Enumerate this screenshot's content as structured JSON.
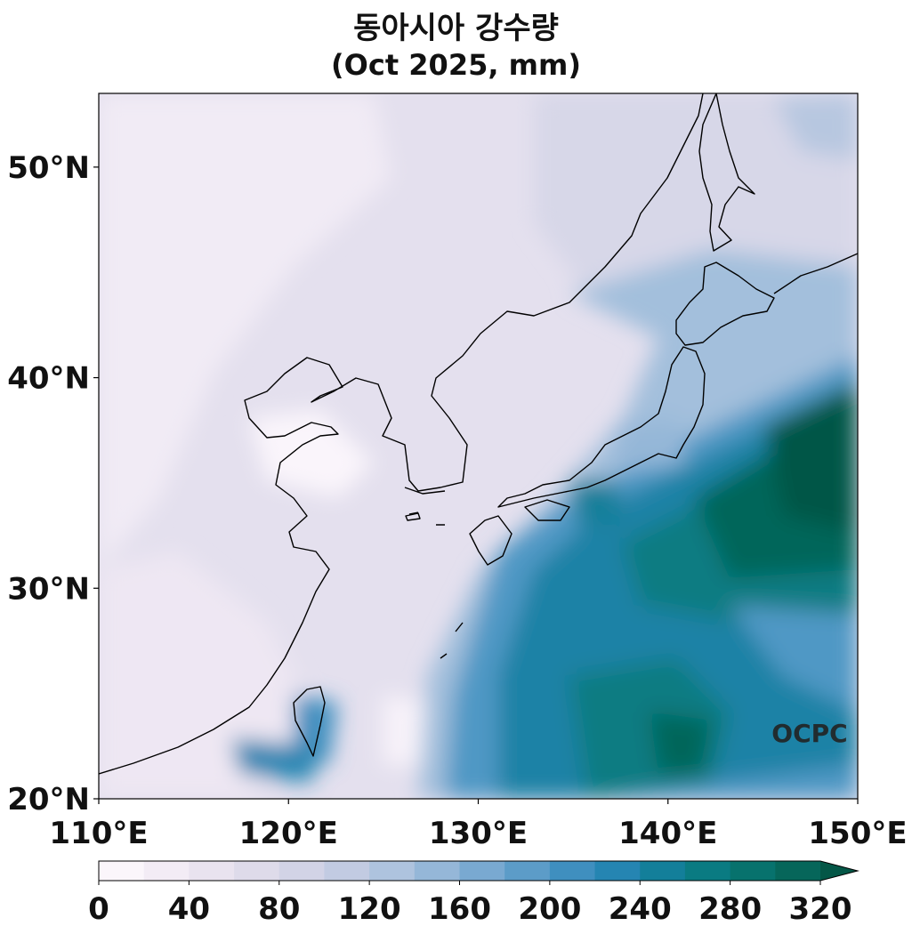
{
  "title": "동아시아 강수량",
  "subtitle": "(Oct 2025, mm)",
  "watermark": "OCPC",
  "map": {
    "lon_range": [
      110,
      150
    ],
    "lat_range": [
      20,
      53.5
    ],
    "lon_ticks": [
      "110°E",
      "120°E",
      "130°E",
      "140°E",
      "150°E"
    ],
    "lat_ticks": [
      "20°N",
      "30°N",
      "40°N",
      "50°N"
    ]
  },
  "colorbar": {
    "levels": [
      0,
      20,
      40,
      60,
      80,
      100,
      120,
      140,
      160,
      180,
      200,
      220,
      240,
      260,
      280,
      300,
      320
    ],
    "tick_labels": [
      "0",
      "40",
      "80",
      "120",
      "160",
      "200",
      "240",
      "280",
      "320"
    ],
    "colors": [
      "#fbf6fb",
      "#f3ecf5",
      "#e9e3ef",
      "#dedbea",
      "#d2d3e6",
      "#c2cbe2",
      "#aec3de",
      "#95b7d8",
      "#79a9d1",
      "#5c9cc8",
      "#3f8fbf",
      "#2585b2",
      "#137f9a",
      "#0a7b82",
      "#07726d",
      "#06665a",
      "#045747"
    ],
    "extend": "max"
  }
}
